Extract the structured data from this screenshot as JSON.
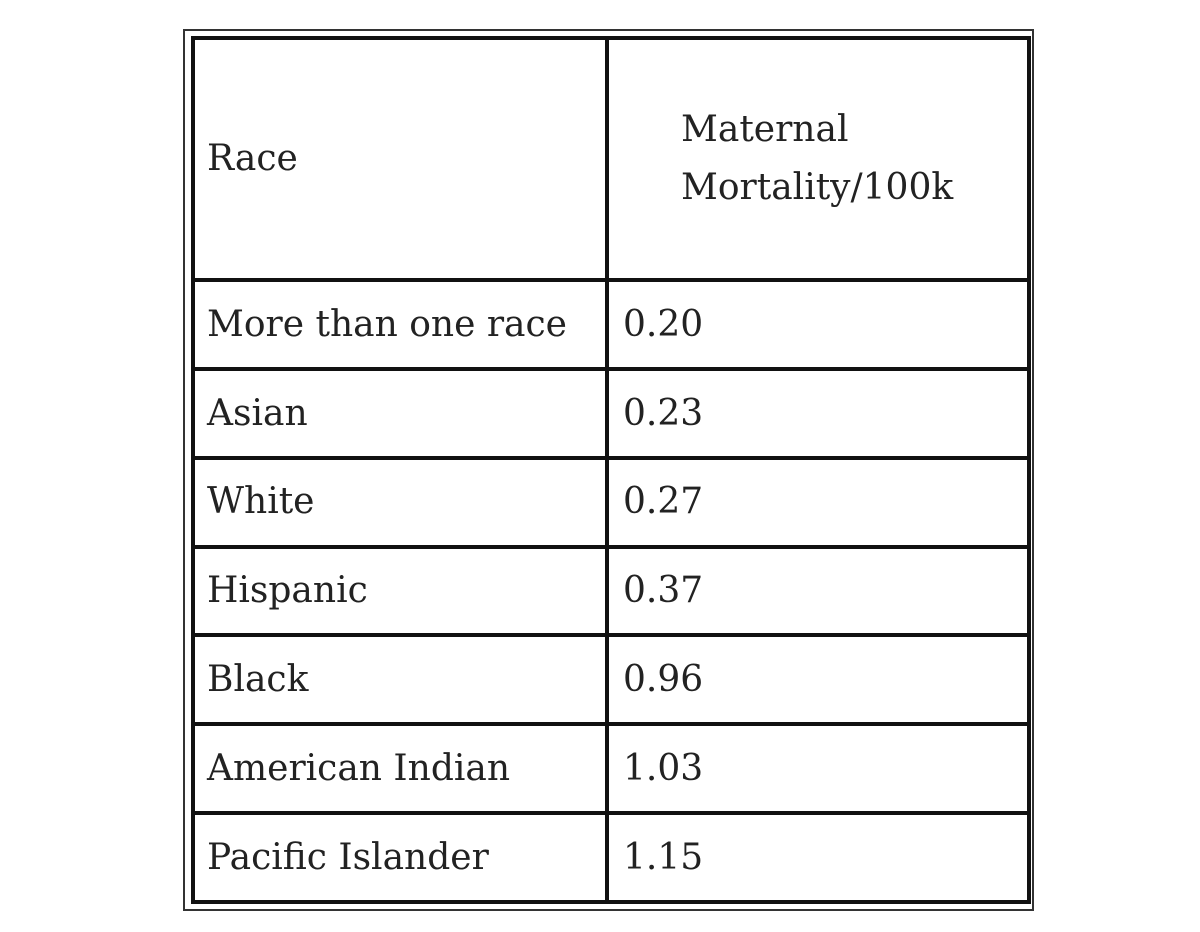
{
  "table": {
    "header": [
      "Race",
      "Maternal Mortality/100k"
    ],
    "rows": [
      [
        "More than one race",
        "0.20"
      ],
      [
        "Asian",
        "0.23"
      ],
      [
        "White",
        "0.27"
      ],
      [
        "Hispanic",
        "0.37"
      ],
      [
        "Black",
        "0.96"
      ],
      [
        "American Indian",
        "1.03"
      ],
      [
        "Pacific Islander",
        "1.15"
      ]
    ]
  }
}
